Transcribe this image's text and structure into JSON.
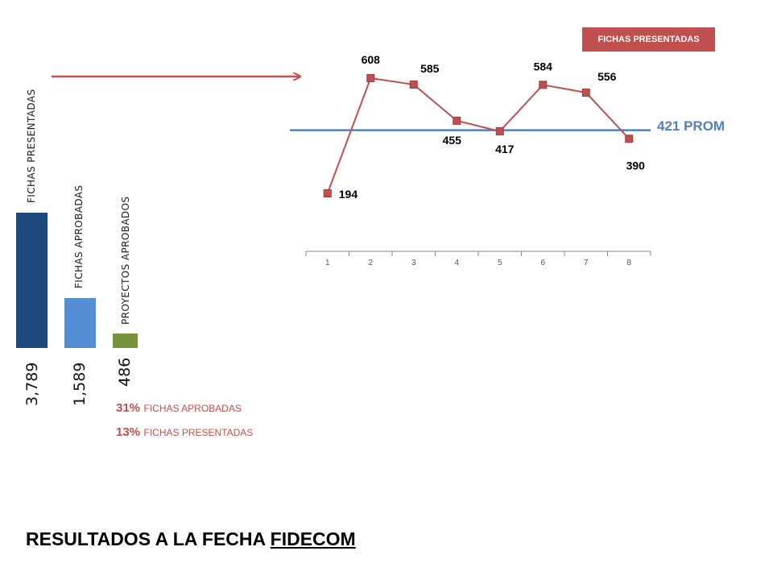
{
  "summary": {
    "bars": [
      {
        "label": "FICHAS PRESENTADAS",
        "value": 3789,
        "value_text": "3,789",
        "color": "#1f497d"
      },
      {
        "label": "FICHAS APROBADAS",
        "value": 1589,
        "value_text": "1,589",
        "color": "#558ed5"
      },
      {
        "label": "PROYECTOS APROBADOS",
        "value": 486,
        "value_text": "486",
        "color": "#77933c"
      }
    ],
    "percentages": [
      {
        "value": "31%",
        "text": "FICHAS APROBADAS"
      },
      {
        "value": "13%",
        "text": "FICHAS PRESENTADAS"
      }
    ]
  },
  "chart_data": {
    "type": "line",
    "categories": [
      "1",
      "2",
      "3",
      "4",
      "5",
      "6",
      "7",
      "8"
    ],
    "series": [
      {
        "name": "FICHAS PRESENTADAS",
        "values": [
          194,
          608,
          585,
          455,
          417,
          584,
          556,
          390
        ],
        "color": "#c0504d"
      }
    ],
    "reference_line": {
      "value": 421,
      "label": "421 PROM",
      "color": "#4f81bd"
    },
    "data_labels": [
      "194",
      "608",
      "585",
      "455",
      "417",
      "584",
      "556",
      "390"
    ],
    "ylim": [
      0,
      700
    ],
    "legend": "top-right",
    "grid": false
  },
  "arrow_color": "#c0504d",
  "footer": {
    "title_prefix": "RESULTADOS A LA FECHA ",
    "title_underlined": "FIDECOM"
  }
}
